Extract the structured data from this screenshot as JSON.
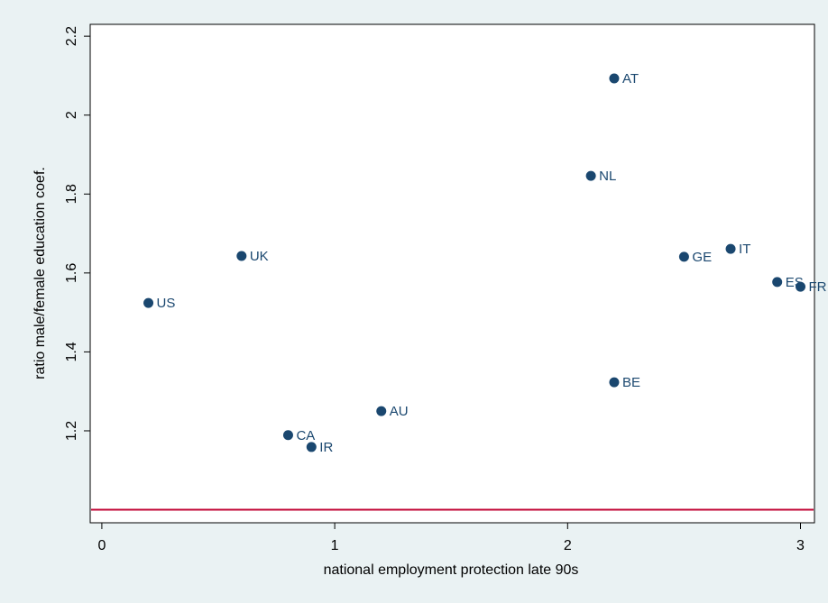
{
  "chart_data": {
    "type": "scatter",
    "xlabel": "national employment protection late 90s",
    "ylabel": "ratio male/female education coef.",
    "x": [
      0.2,
      0.6,
      0.8,
      0.9,
      1.2,
      2.1,
      2.2,
      2.2,
      2.5,
      2.7,
      2.9,
      3.0
    ],
    "y": [
      1.524,
      1.643,
      1.189,
      1.159,
      1.25,
      1.846,
      2.093,
      1.323,
      1.641,
      1.661,
      1.577,
      1.565
    ],
    "labels": [
      "US",
      "UK",
      "CA",
      "IR",
      "AU",
      "NL",
      "AT",
      "BE",
      "GE",
      "IT",
      "ES",
      "FR"
    ],
    "color": "#1a476f",
    "xlim": [
      -0.05,
      3.06
    ],
    "ylim": [
      0.967,
      2.23
    ],
    "xticks": [
      0,
      1,
      2,
      3
    ],
    "yticks": [
      1.2,
      1.4,
      1.6,
      1.8,
      2,
      2.2
    ],
    "reference_line": {
      "y": 1,
      "color": "#c10534"
    },
    "grid": false
  }
}
